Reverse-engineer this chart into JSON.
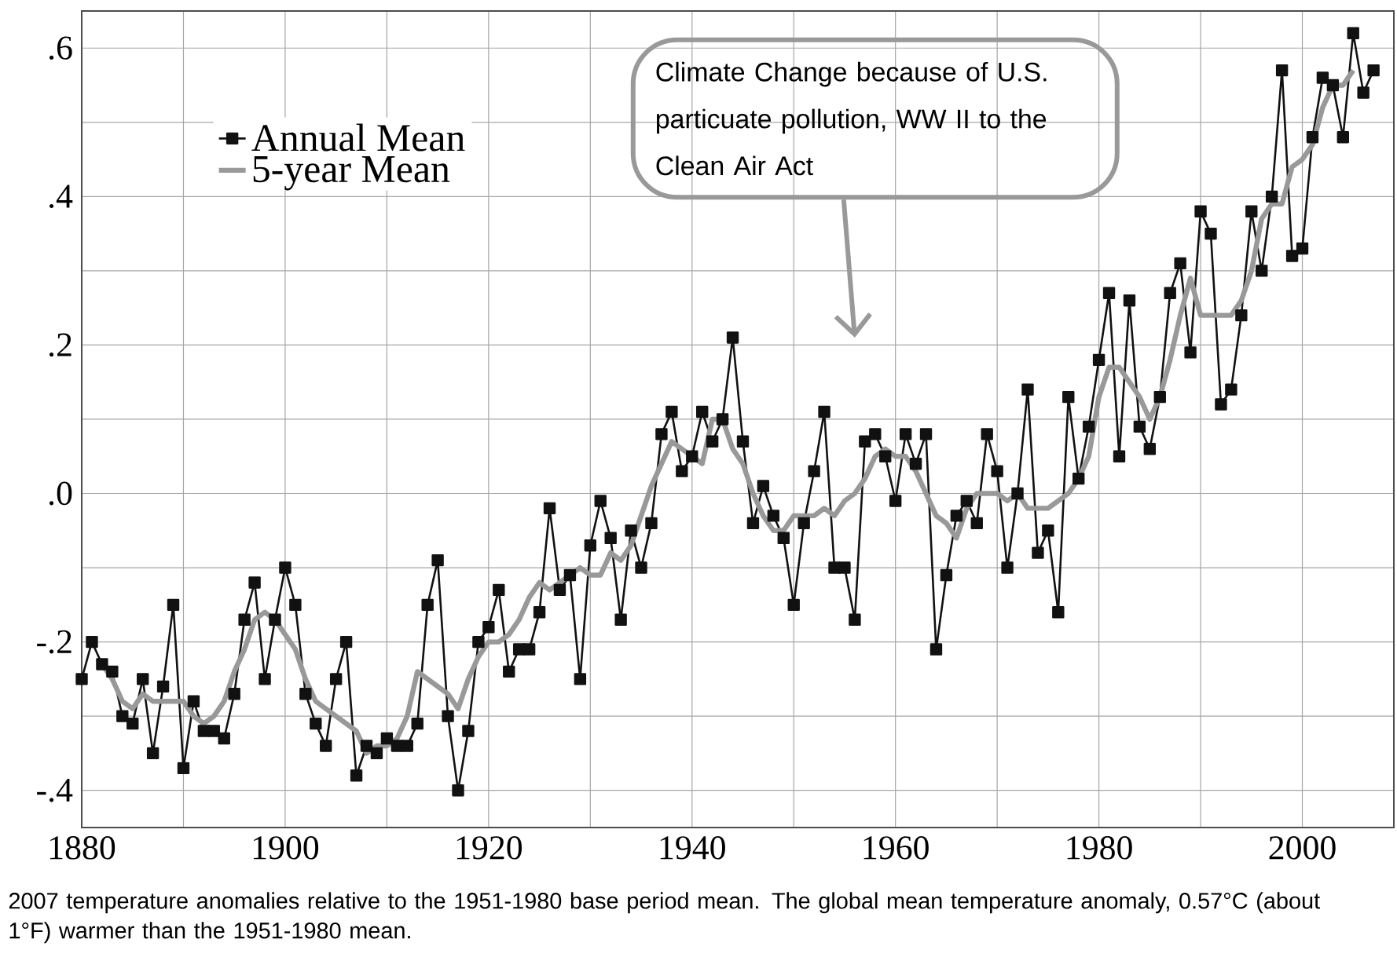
{
  "chart_data": {
    "type": "line",
    "x": [
      1880,
      1881,
      1882,
      1883,
      1884,
      1885,
      1886,
      1887,
      1888,
      1889,
      1890,
      1891,
      1892,
      1893,
      1894,
      1895,
      1896,
      1897,
      1898,
      1899,
      1900,
      1901,
      1902,
      1903,
      1904,
      1905,
      1906,
      1907,
      1908,
      1909,
      1910,
      1911,
      1912,
      1913,
      1914,
      1915,
      1916,
      1917,
      1918,
      1919,
      1920,
      1921,
      1922,
      1923,
      1924,
      1925,
      1926,
      1927,
      1928,
      1929,
      1930,
      1931,
      1932,
      1933,
      1934,
      1935,
      1936,
      1937,
      1938,
      1939,
      1940,
      1941,
      1942,
      1943,
      1944,
      1945,
      1946,
      1947,
      1948,
      1949,
      1950,
      1951,
      1952,
      1953,
      1954,
      1955,
      1956,
      1957,
      1958,
      1959,
      1960,
      1961,
      1962,
      1963,
      1964,
      1965,
      1966,
      1967,
      1968,
      1969,
      1970,
      1971,
      1972,
      1973,
      1974,
      1975,
      1976,
      1977,
      1978,
      1979,
      1980,
      1981,
      1982,
      1983,
      1984,
      1985,
      1986,
      1987,
      1988,
      1989,
      1990,
      1991,
      1992,
      1993,
      1994,
      1995,
      1996,
      1997,
      1998,
      1999,
      2000,
      2001,
      2002,
      2003,
      2004,
      2005,
      2006,
      2007
    ],
    "series": [
      {
        "name": "Annual Mean",
        "color": "#111111",
        "marker": "square",
        "values": [
          -0.25,
          -0.2,
          -0.23,
          -0.24,
          -0.3,
          -0.31,
          -0.25,
          -0.35,
          -0.26,
          -0.15,
          -0.37,
          -0.28,
          -0.32,
          -0.32,
          -0.33,
          -0.27,
          -0.17,
          -0.12,
          -0.25,
          -0.17,
          -0.1,
          -0.15,
          -0.27,
          -0.31,
          -0.34,
          -0.25,
          -0.2,
          -0.38,
          -0.34,
          -0.35,
          -0.33,
          -0.34,
          -0.34,
          -0.31,
          -0.15,
          -0.09,
          -0.3,
          -0.4,
          -0.32,
          -0.2,
          -0.18,
          -0.13,
          -0.24,
          -0.21,
          -0.21,
          -0.16,
          -0.02,
          -0.13,
          -0.11,
          -0.25,
          -0.07,
          -0.01,
          -0.06,
          -0.17,
          -0.05,
          -0.1,
          -0.04,
          0.08,
          0.11,
          0.03,
          0.05,
          0.11,
          0.07,
          0.1,
          0.21,
          0.07,
          -0.04,
          0.01,
          -0.03,
          -0.06,
          -0.15,
          -0.04,
          0.03,
          0.11,
          -0.1,
          -0.1,
          -0.17,
          0.07,
          0.08,
          0.05,
          -0.01,
          0.08,
          0.04,
          0.08,
          -0.21,
          -0.11,
          -0.03,
          -0.01,
          -0.04,
          0.08,
          0.03,
          -0.1,
          0.0,
          0.14,
          -0.08,
          -0.05,
          -0.16,
          0.13,
          0.02,
          0.09,
          0.18,
          0.27,
          0.05,
          0.26,
          0.09,
          0.06,
          0.13,
          0.27,
          0.31,
          0.19,
          0.38,
          0.35,
          0.12,
          0.14,
          0.24,
          0.38,
          0.3,
          0.4,
          0.57,
          0.32,
          0.33,
          0.48,
          0.56,
          0.55,
          0.48,
          0.62,
          0.54,
          0.57
        ]
      },
      {
        "name": "5-year Mean",
        "color": "#999999",
        "marker": "none",
        "x": [
          1882,
          1883,
          1884,
          1885,
          1886,
          1887,
          1888,
          1889,
          1890,
          1891,
          1892,
          1893,
          1894,
          1895,
          1896,
          1897,
          1898,
          1899,
          1900,
          1901,
          1902,
          1903,
          1904,
          1905,
          1906,
          1907,
          1908,
          1909,
          1910,
          1911,
          1912,
          1913,
          1914,
          1915,
          1916,
          1917,
          1918,
          1919,
          1920,
          1921,
          1922,
          1923,
          1924,
          1925,
          1926,
          1927,
          1928,
          1929,
          1930,
          1931,
          1932,
          1933,
          1934,
          1935,
          1936,
          1937,
          1938,
          1939,
          1940,
          1941,
          1942,
          1943,
          1944,
          1945,
          1946,
          1947,
          1948,
          1949,
          1950,
          1951,
          1952,
          1953,
          1954,
          1955,
          1956,
          1957,
          1958,
          1959,
          1960,
          1961,
          1962,
          1963,
          1964,
          1965,
          1966,
          1967,
          1968,
          1969,
          1970,
          1971,
          1972,
          1973,
          1974,
          1975,
          1976,
          1977,
          1978,
          1979,
          1980,
          1981,
          1982,
          1983,
          1984,
          1985,
          1986,
          1987,
          1988,
          1989,
          1990,
          1991,
          1992,
          1993,
          1994,
          1995,
          1996,
          1997,
          1998,
          1999,
          2000,
          2001,
          2002,
          2003,
          2004,
          2005
        ],
        "values": [
          -0.23,
          -0.25,
          -0.28,
          -0.29,
          -0.27,
          -0.28,
          -0.28,
          -0.28,
          -0.28,
          -0.3,
          -0.31,
          -0.3,
          -0.28,
          -0.24,
          -0.21,
          -0.17,
          -0.16,
          -0.17,
          -0.19,
          -0.21,
          -0.25,
          -0.28,
          -0.29,
          -0.3,
          -0.31,
          -0.32,
          -0.35,
          -0.34,
          -0.34,
          -0.33,
          -0.3,
          -0.24,
          -0.25,
          -0.26,
          -0.27,
          -0.29,
          -0.25,
          -0.22,
          -0.2,
          -0.2,
          -0.19,
          -0.17,
          -0.14,
          -0.12,
          -0.13,
          -0.12,
          -0.11,
          -0.1,
          -0.11,
          -0.11,
          -0.08,
          -0.09,
          -0.07,
          -0.03,
          0.01,
          0.04,
          0.07,
          0.06,
          0.05,
          0.04,
          0.1,
          0.1,
          0.06,
          0.04,
          0.0,
          -0.03,
          -0.05,
          -0.05,
          -0.03,
          -0.03,
          -0.03,
          -0.02,
          -0.03,
          -0.01,
          0.0,
          0.02,
          0.05,
          0.06,
          0.05,
          0.05,
          0.03,
          0.0,
          -0.03,
          -0.04,
          -0.06,
          -0.02,
          0.0,
          0.0,
          0.0,
          -0.01,
          0.0,
          -0.02,
          -0.02,
          -0.02,
          -0.01,
          0.0,
          0.02,
          0.05,
          0.13,
          0.17,
          0.17,
          0.15,
          0.13,
          0.1,
          0.13,
          0.18,
          0.24,
          0.29,
          0.24,
          0.24,
          0.24,
          0.24,
          0.26,
          0.3,
          0.37,
          0.39,
          0.39,
          0.44,
          0.45,
          0.47,
          0.52,
          0.55,
          0.55,
          0.57
        ]
      }
    ],
    "xlim": [
      1880,
      2009
    ],
    "ylim": [
      -0.45,
      0.65
    ],
    "xticks": [
      1880,
      {
        "value": 1890,
        "label": null
      },
      1900,
      {
        "value": 1910,
        "label": null
      },
      1920,
      {
        "value": 1930,
        "label": null
      },
      1940,
      {
        "value": 1950,
        "label": null
      },
      1960,
      {
        "value": 1970,
        "label": null
      },
      1980,
      {
        "value": 1990,
        "label": null
      },
      2000
    ],
    "yticks": [
      {
        "value": -0.4,
        "label": "-.4"
      },
      {
        "value": -0.3,
        "label": null
      },
      {
        "value": -0.2,
        "label": "-.2"
      },
      {
        "value": -0.1,
        "label": null
      },
      {
        "value": 0,
        "label": ".0"
      },
      {
        "value": 0.1,
        "label": null
      },
      {
        "value": 0.2,
        "label": ".2"
      },
      {
        "value": 0.3,
        "label": null
      },
      {
        "value": 0.4,
        "label": ".4"
      },
      {
        "value": 0.5,
        "label": null
      },
      {
        "value": 0.6,
        "label": ".6"
      }
    ],
    "grid": true,
    "legend": "top left",
    "annotations": [
      "Climate Change because of U.S. particuate pollution, WW II to the Clean Air Act",
      "2007 temperature anomalies relative to the 1951-1980 base period mean. The global mean temperature anomaly, 0.57°C (about 1°F) warmer than the 1951-1980 mean."
    ]
  }
}
